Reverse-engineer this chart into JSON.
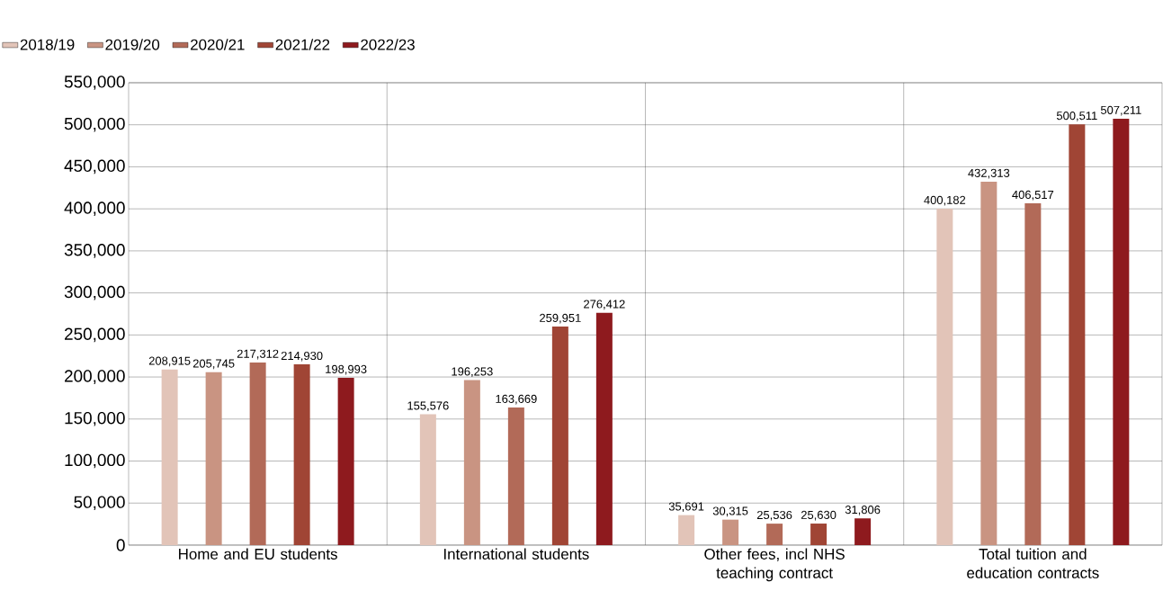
{
  "chart_data": {
    "type": "bar",
    "categories": [
      "Home and EU students",
      "International students",
      "Other fees, incl NHS teaching contract",
      "Total tuition and education contracts"
    ],
    "series": [
      {
        "name": "2018/19",
        "color": "#e2c4b8",
        "values": [
          208915,
          155576,
          35691,
          400182
        ],
        "value_labels": [
          "208,915",
          "155,576",
          "35,691",
          "400,182"
        ]
      },
      {
        "name": "2019/20",
        "color": "#c99482",
        "values": [
          205745,
          196253,
          30315,
          432313
        ],
        "value_labels": [
          "205,745",
          "196,253",
          "30,315",
          "432,313"
        ]
      },
      {
        "name": "2020/21",
        "color": "#b26a58",
        "values": [
          217312,
          163669,
          25536,
          406517
        ],
        "value_labels": [
          "217,312",
          "163,669",
          "25,536",
          "406,517"
        ]
      },
      {
        "name": "2021/22",
        "color": "#a04535",
        "values": [
          214930,
          259951,
          25630,
          500511
        ],
        "value_labels": [
          "214,930",
          "259,951",
          "25,630",
          "500,511"
        ]
      },
      {
        "name": "2022/23",
        "color": "#8e1a1e",
        "values": [
          198993,
          276412,
          31806,
          507211
        ],
        "value_labels": [
          "198,993",
          "276,412",
          "31,806",
          "507,211"
        ]
      }
    ],
    "ylim": [
      0,
      550000
    ],
    "yticks": [
      0,
      {
        "value": 50000,
        "label": "50,000"
      },
      {
        "value": 100000,
        "label": "100,000"
      },
      {
        "value": 150000,
        "label": "150,000"
      },
      {
        "value": 200000,
        "label": "200,000"
      },
      {
        "value": 250000,
        "label": "250,000"
      },
      {
        "value": 300000,
        "label": "300,000"
      },
      {
        "value": 350000,
        "label": "350,000"
      },
      {
        "value": 400000,
        "label": "400,000"
      },
      {
        "value": 450000,
        "label": "450,000"
      },
      {
        "value": 500000,
        "label": "500,000"
      },
      {
        "value": 550000,
        "label": "550,000"
      }
    ],
    "grid": "y",
    "legend": "top left"
  }
}
